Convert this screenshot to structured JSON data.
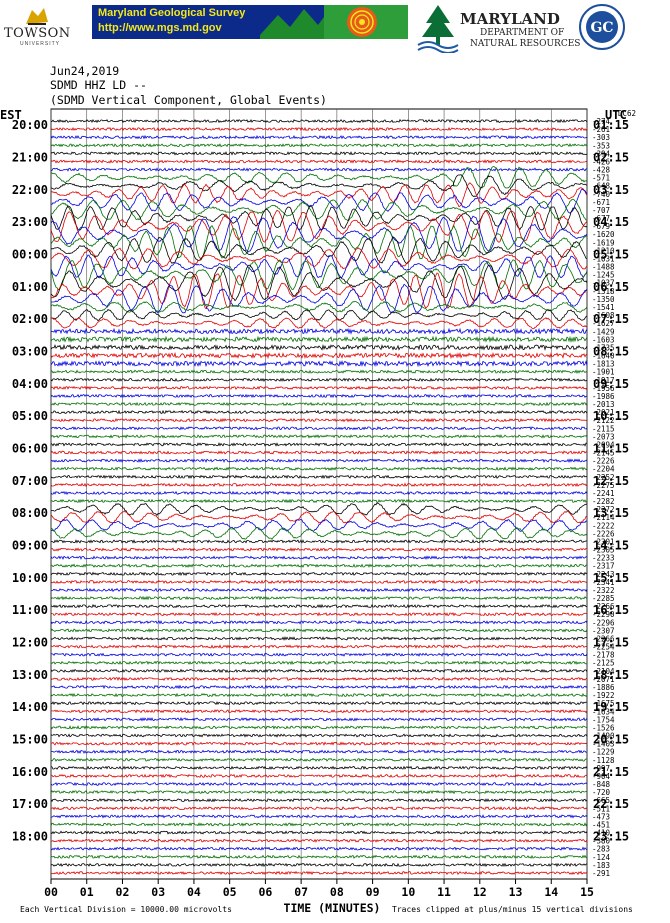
{
  "banner": {
    "towson": "TOWSON",
    "towson_sub": "UNIVERSITY",
    "mgs_title": "Maryland Geological Survey",
    "mgs_url": "http://www.mgs.md.gov",
    "dnr_title": "MARYLAND",
    "dnr_sub1": "DEPARTMENT OF",
    "dnr_sub2": "NATURAL RESOURCES",
    "gc_logo": "GC"
  },
  "header": {
    "date": "Jun24,2019",
    "station": "SDMD HHZ LD --",
    "component": "(SDMD Vertical Component, Global Events)",
    "left_tz": "EST",
    "right_tz": "UTC",
    "corner": "DC62"
  },
  "footer": {
    "scale": "Each Vertical Division = 10000.00 microvolts",
    "xlabel": "TIME (MINUTES)",
    "clip": "Traces clipped at plus/minus 15 vertical divisions"
  },
  "chart_data": {
    "type": "line",
    "title": "(SDMD Vertical Component, Global Events)",
    "xlabel": "TIME (MINUTES)",
    "xlim": [
      0,
      15
    ],
    "x_ticks": [
      "00",
      "01",
      "02",
      "03",
      "04",
      "05",
      "06",
      "07",
      "08",
      "09",
      "10",
      "11",
      "12",
      "13",
      "14",
      "15"
    ],
    "trace_colors": [
      "#000000",
      "#e00000",
      "#0000e0",
      "#007000"
    ],
    "est_labels": [
      "20:00",
      "21:00",
      "22:00",
      "23:00",
      "00:00",
      "01:00",
      "02:00",
      "03:00",
      "04:00",
      "05:00",
      "06:00",
      "07:00",
      "08:00",
      "09:00",
      "10:00",
      "11:00",
      "12:00",
      "13:00",
      "14:00",
      "15:00",
      "16:00",
      "17:00",
      "18:00"
    ],
    "utc_labels": [
      "01:15",
      "02:15",
      "03:15",
      "04:15",
      "05:15",
      "06:15",
      "07:15",
      "08:15",
      "09:15",
      "10:15",
      "11:15",
      "12:15",
      "13:15",
      "14:15",
      "15:15",
      "16:15",
      "17:15",
      "18:15",
      "19:15",
      "20:15",
      "21:15",
      "22:15",
      "23:15"
    ],
    "offsets": [
      "-274",
      "-261",
      "-303",
      "-353",
      "-394",
      "-426",
      "-428",
      "-571",
      "-648",
      "-740",
      "-671",
      "-707",
      "-677",
      "-679",
      "-1620",
      "-1619",
      "-1210",
      "-1031",
      "-1488",
      "-1245",
      "-1037",
      "-1318",
      "-1350",
      "-1541",
      "-1608",
      "-1627",
      "-1429",
      "-1603",
      "-1735",
      "-1640",
      "-1813",
      "-1901",
      "-1917",
      "-1956",
      "-1986",
      "-2013",
      "-2021",
      "-2122",
      "-2115",
      "-2073",
      "-2094",
      "-2145",
      "-2226",
      "-2204",
      "-2252",
      "-2275",
      "-2241",
      "-2282",
      "-2272",
      "-2114",
      "-2222",
      "-2226",
      "-2301",
      "-2305",
      "-2233",
      "-2317",
      "-2243",
      "-2341",
      "-2322",
      "-2285",
      "-2266",
      "-2290",
      "-2296",
      "-2307",
      "-2266",
      "-2254",
      "-2178",
      "-2125",
      "-2104",
      "-2071",
      "-1886",
      "-1922",
      "-1675",
      "-1634",
      "-1754",
      "-1526",
      "-1490",
      "-1403",
      "-1229",
      "-1128",
      "-997",
      "-904",
      "-848",
      "-720",
      "-665",
      "-511",
      "-473",
      "-451",
      "-410",
      "-380",
      "-283",
      "-124",
      "-183",
      "-291"
    ]
  }
}
